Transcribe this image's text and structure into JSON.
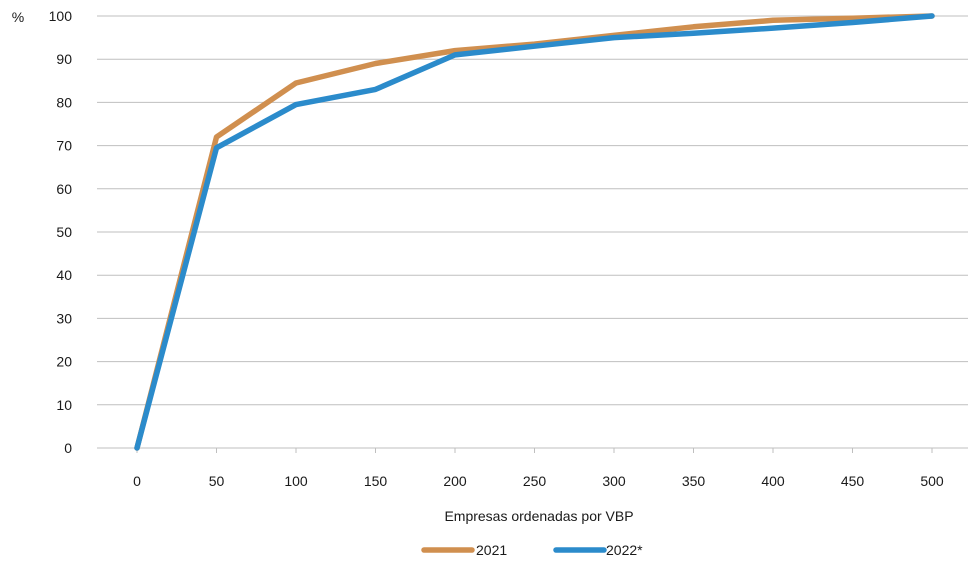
{
  "chart_data": {
    "type": "line",
    "title": "",
    "y_unit_label": "%",
    "xlabel": "Empresas ordenadas por VBP",
    "ylabel": "",
    "x": [
      0,
      50,
      100,
      150,
      200,
      250,
      300,
      350,
      400,
      450,
      500
    ],
    "xlim": [
      0,
      500
    ],
    "ylim": [
      0,
      100
    ],
    "x_ticks": [
      0,
      50,
      100,
      150,
      200,
      250,
      300,
      350,
      400,
      450,
      500
    ],
    "y_ticks": [
      0,
      10,
      20,
      30,
      40,
      50,
      60,
      70,
      80,
      90,
      100
    ],
    "grid": "horizontal",
    "legend_position": "bottom",
    "series": [
      {
        "name": "2021",
        "color": "#D08F4F",
        "values": [
          0,
          72,
          84.5,
          89,
          92,
          93.5,
          95.5,
          97.5,
          99,
          99.5,
          100
        ]
      },
      {
        "name": "2022*",
        "color": "#2B8BCB",
        "values": [
          0,
          69.5,
          79.5,
          83,
          91,
          93,
          95,
          96,
          97.2,
          98.5,
          100
        ]
      }
    ]
  }
}
